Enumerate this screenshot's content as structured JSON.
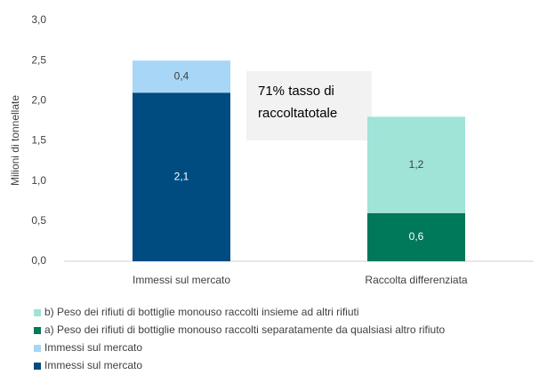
{
  "chart_data": {
    "type": "stacked_bar",
    "y_label": "Milioni di tonnellate",
    "annotation": [
      "71% tasso di",
      "raccoltatotale"
    ],
    "categories": [
      "Immessi sul mercato",
      "Raccolta differenziata"
    ],
    "series": [
      {
        "name": "b) Peso dei rifiuti di bottiglie monouso raccolti insieme ad altri rifiuti",
        "color": "#a0e3d7",
        "values": [
          null,
          1.2
        ],
        "value_labels": [
          null,
          "1,2"
        ]
      },
      {
        "name": "a) Peso dei rifiuti di bottiglie monouso raccolti separatamente da qualsiasi altro rifiuto",
        "color": "#00785a",
        "values": [
          null,
          0.6
        ],
        "value_labels": [
          null,
          "0,6"
        ]
      },
      {
        "name": "Immessi sul mercato",
        "color": "#a7d6f6",
        "values": [
          0.4,
          null
        ],
        "value_labels": [
          "0,4",
          null
        ]
      },
      {
        "name": "Immessi sul mercato",
        "color": "#004b80",
        "values": [
          2.1,
          null
        ],
        "value_labels": [
          "2,1",
          null
        ]
      }
    ],
    "ylim": [
      0,
      3
    ],
    "yticks": [
      {
        "value": 0,
        "label": "0,0"
      },
      {
        "value": 0.5,
        "label": "0,5"
      },
      {
        "value": 1,
        "label": "1,0"
      },
      {
        "value": 1.5,
        "label": "1,5"
      },
      {
        "value": 2,
        "label": "2,0"
      },
      {
        "value": 2.5,
        "label": "2,5"
      },
      {
        "value": 3,
        "label": "3,0"
      }
    ],
    "grid": false
  }
}
